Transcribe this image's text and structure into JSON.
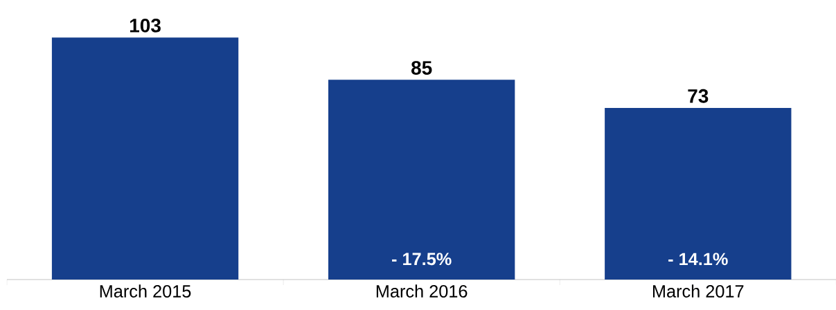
{
  "chart_data": {
    "type": "bar",
    "categories": [
      "March 2015",
      "March 2016",
      "March 2017"
    ],
    "values": [
      103,
      85,
      73
    ],
    "color": "#163f8c",
    "data_labels": true,
    "tick_labels": "x",
    "annotations": [
      "- 17.5%",
      "- 14.1%"
    ]
  }
}
